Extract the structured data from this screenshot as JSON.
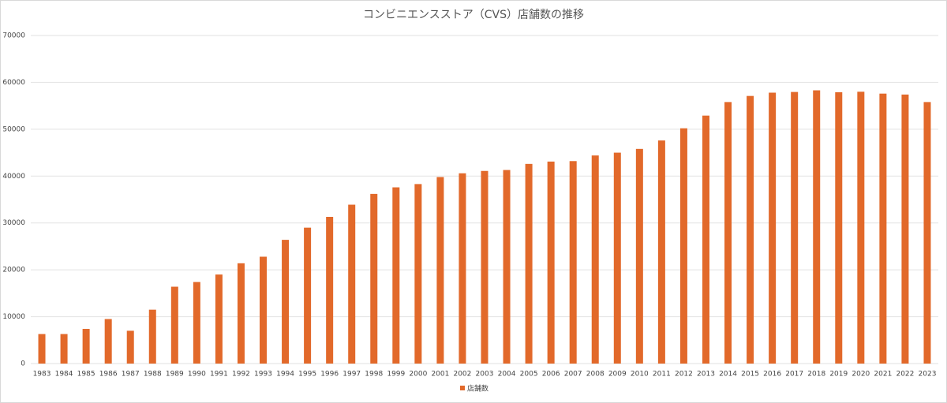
{
  "chart_data": {
    "type": "bar",
    "title": "コンビニエンスストア（CVS）店舗数の推移",
    "categories": [
      "1983",
      "1984",
      "1985",
      "1986",
      "1987",
      "1988",
      "1989",
      "1990",
      "1991",
      "1992",
      "1993",
      "1994",
      "1995",
      "1996",
      "1997",
      "1998",
      "1999",
      "2000",
      "2001",
      "2002",
      "2003",
      "2004",
      "2005",
      "2006",
      "2007",
      "2008",
      "2009",
      "2010",
      "2011",
      "2012",
      "2013",
      "2014",
      "2015",
      "2016",
      "2017",
      "2018",
      "2019",
      "2020",
      "2021",
      "2022",
      "2023"
    ],
    "series": [
      {
        "name": "店舗数",
        "color": "#e2692a",
        "values": [
          6300,
          6300,
          7400,
          9500,
          7000,
          11500,
          16400,
          17400,
          19000,
          21400,
          22800,
          26400,
          29000,
          31300,
          33900,
          36200,
          37600,
          38300,
          39800,
          40600,
          41100,
          41300,
          42600,
          43100,
          43200,
          44400,
          45000,
          45800,
          47600,
          50200,
          52900,
          55800,
          57100,
          57800,
          57950,
          58300,
          57900,
          58000,
          57600,
          57400,
          55800
        ]
      }
    ],
    "ylim": [
      0,
      70000
    ],
    "yticks": [
      0,
      10000,
      20000,
      30000,
      40000,
      50000,
      60000,
      70000
    ],
    "grid": true,
    "legend": "bottom"
  }
}
